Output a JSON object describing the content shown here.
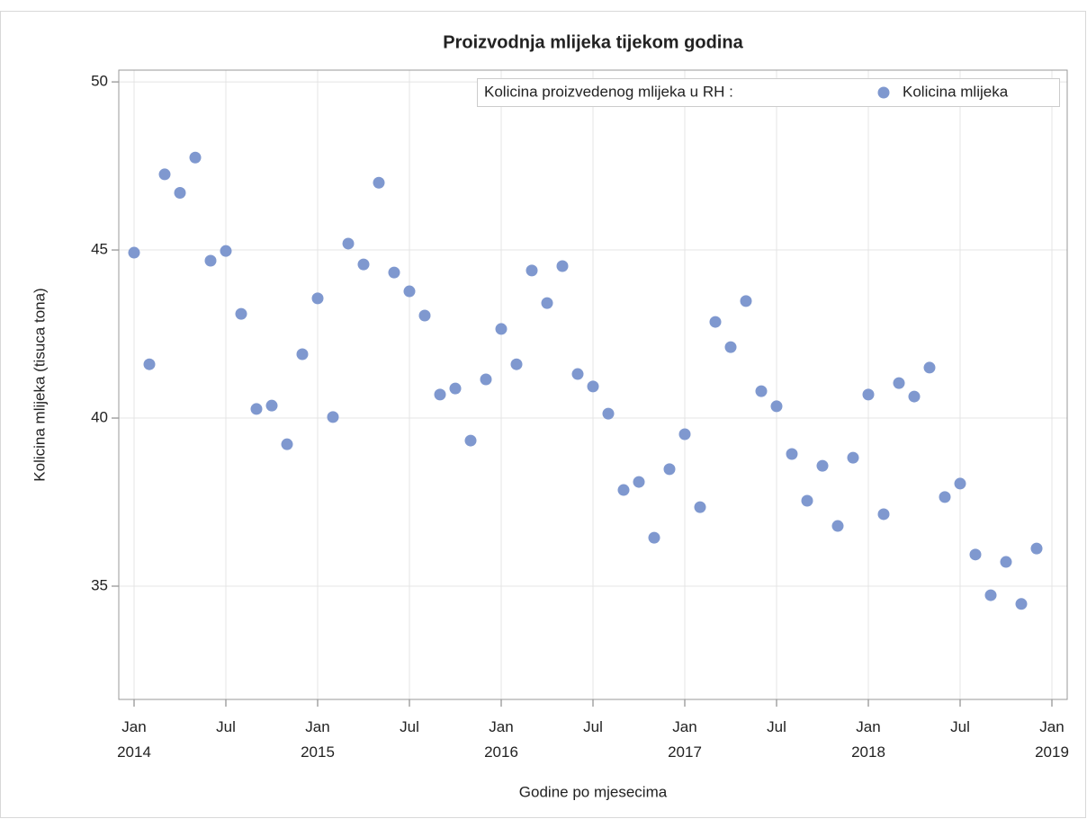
{
  "chart_data": {
    "type": "scatter",
    "title": "Proizvodnja mlijeka tijekom godina",
    "x_label": "Godine po mjesecima",
    "y_label": "Kolicina mlijeka (tisuca tona)",
    "legend_title": "Kolicina proizvedenog mlijeka u RH :",
    "legend_position": "top-right",
    "grid": true,
    "x": [
      "2014-01",
      "2014-02",
      "2014-03",
      "2014-04",
      "2014-05",
      "2014-06",
      "2014-07",
      "2014-08",
      "2014-09",
      "2014-10",
      "2014-11",
      "2014-12",
      "2015-01",
      "2015-02",
      "2015-03",
      "2015-04",
      "2015-05",
      "2015-06",
      "2015-07",
      "2015-08",
      "2015-09",
      "2015-10",
      "2015-11",
      "2015-12",
      "2016-01",
      "2016-02",
      "2016-03",
      "2016-04",
      "2016-05",
      "2016-06",
      "2016-07",
      "2016-08",
      "2016-09",
      "2016-10",
      "2016-11",
      "2016-12",
      "2017-01",
      "2017-02",
      "2017-03",
      "2017-04",
      "2017-05",
      "2017-06",
      "2017-07",
      "2017-08",
      "2017-09",
      "2017-10",
      "2017-11",
      "2017-12",
      "2018-01",
      "2018-02",
      "2018-03",
      "2018-04",
      "2018-05",
      "2018-06",
      "2018-07",
      "2018-08",
      "2018-09",
      "2018-10",
      "2018-11",
      "2018-12"
    ],
    "series": [
      {
        "name": "Kolicina mlijeka",
        "color": "#7f98cf",
        "values": [
          44.92,
          41.6,
          47.25,
          46.7,
          47.75,
          44.68,
          44.97,
          43.1,
          40.27,
          40.37,
          39.22,
          41.9,
          43.56,
          40.03,
          45.19,
          44.57,
          47.0,
          44.33,
          43.77,
          43.05,
          40.7,
          40.88,
          39.33,
          41.15,
          42.65,
          41.6,
          44.39,
          43.42,
          44.52,
          41.31,
          40.94,
          40.13,
          37.86,
          38.1,
          36.44,
          38.48,
          39.52,
          37.35,
          42.86,
          42.11,
          43.48,
          40.8,
          40.35,
          38.93,
          37.54,
          38.58,
          36.79,
          38.82,
          40.7,
          37.14,
          41.04,
          40.64,
          41.5,
          37.65,
          38.05,
          35.94,
          34.73,
          35.72,
          34.47,
          36.12
        ]
      }
    ],
    "xlim": [
      "2013-12",
      "2019-02"
    ],
    "xticks": [
      {
        "value": "2014-01",
        "label": "Jan 2014"
      },
      {
        "value": "2014-07",
        "label": "Jul"
      },
      {
        "value": "2015-01",
        "label": "Jan 2015"
      },
      {
        "value": "2015-07",
        "label": "Jul"
      },
      {
        "value": "2016-01",
        "label": "Jan 2016"
      },
      {
        "value": "2016-07",
        "label": "Jul"
      },
      {
        "value": "2017-01",
        "label": "Jan 2017"
      },
      {
        "value": "2017-07",
        "label": "Jul"
      },
      {
        "value": "2018-01",
        "label": "Jan 2018"
      },
      {
        "value": "2018-07",
        "label": "Jul"
      },
      {
        "value": "2019-01",
        "label": "Jan 2019"
      }
    ],
    "ylim": [
      31.63,
      50.35
    ],
    "yticks": [
      35,
      40,
      45,
      50
    ]
  }
}
